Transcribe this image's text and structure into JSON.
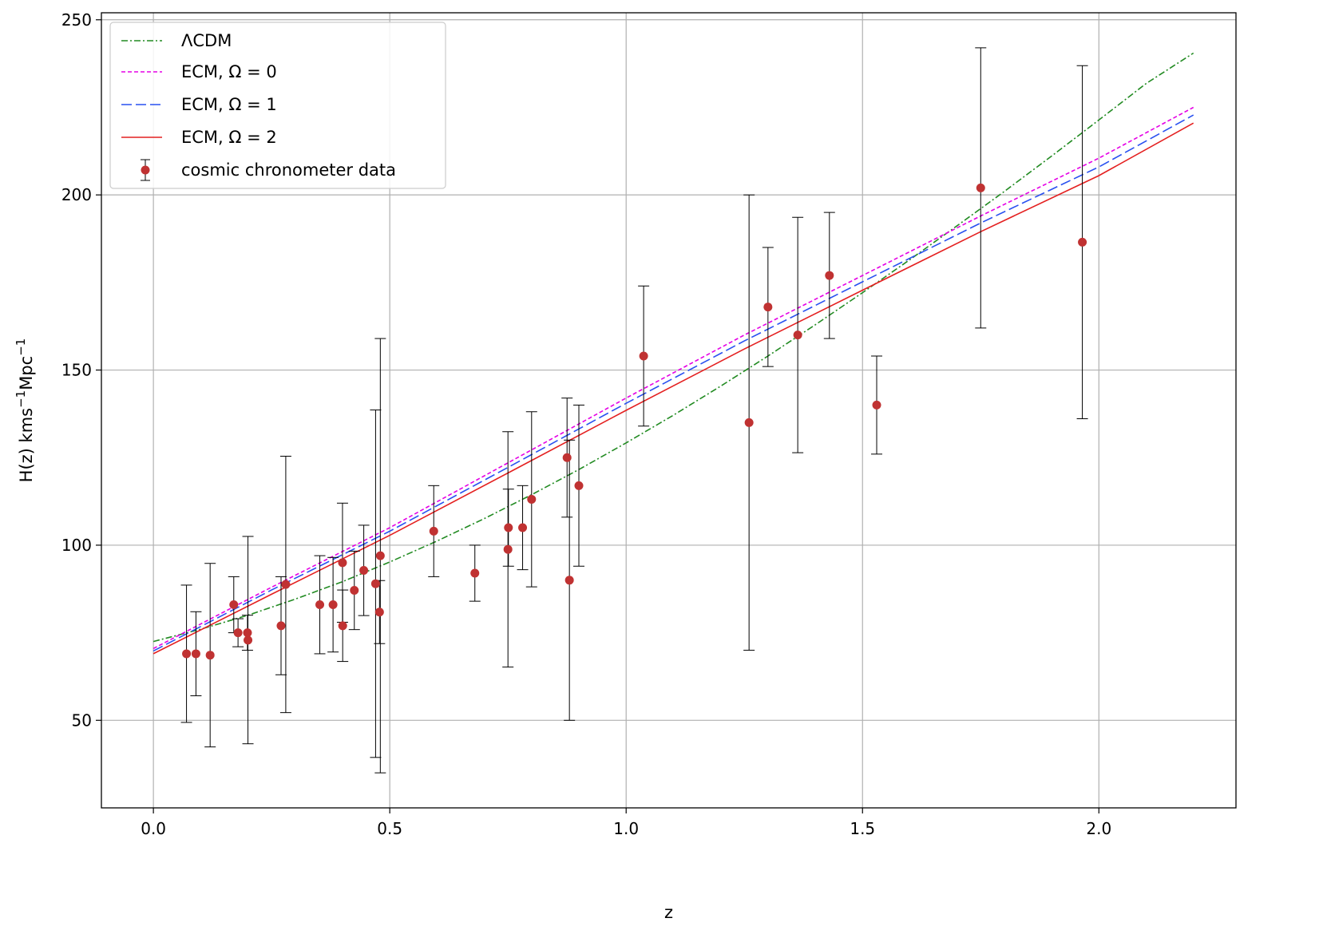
{
  "chart_data": {
    "type": "line",
    "title": "",
    "xlabel": "z",
    "ylabel": "H(z) kms⁻¹Mpc⁻¹",
    "xlim": [
      -0.11,
      2.29
    ],
    "ylim": [
      25,
      252
    ],
    "xticks": [
      0.0,
      0.5,
      1.0,
      1.5,
      2.0
    ],
    "xtick_labels": [
      "0.0",
      "0.5",
      "1.0",
      "1.5",
      "2.0"
    ],
    "yticks": [
      50,
      100,
      150,
      200,
      250
    ],
    "ytick_labels": [
      "50",
      "100",
      "150",
      "200",
      "250"
    ],
    "grid": true,
    "legend_position": "top-left",
    "series": [
      {
        "name": "ΛCDM",
        "style": "dashdot",
        "color": "#228b22",
        "x": [
          0.0,
          0.1,
          0.2,
          0.3,
          0.4,
          0.5,
          0.6,
          0.7,
          0.8,
          0.9,
          1.0,
          1.1,
          1.2,
          1.3,
          1.4,
          1.5,
          1.6,
          1.7,
          1.8,
          1.9,
          2.0,
          2.1,
          2.2
        ],
        "y": [
          72.5,
          76.0,
          80.0,
          84.6,
          89.6,
          95.2,
          101.2,
          107.6,
          114.4,
          121.6,
          129.2,
          137.1,
          145.4,
          154.0,
          162.9,
          172.1,
          181.5,
          191.2,
          201.0,
          211.1,
          221.4,
          231.8,
          240.5
        ]
      },
      {
        "name": "ECM, Ω = 0",
        "style": "dashed",
        "color": "#e500e5",
        "x": [
          0.0,
          0.25,
          0.5,
          0.75,
          1.0,
          1.25,
          1.5,
          1.75,
          2.0,
          2.2
        ],
        "y": [
          70.5,
          88.0,
          105.0,
          123.5,
          142.0,
          160.0,
          177.0,
          194.0,
          210.5,
          225.0
        ]
      },
      {
        "name": "ECM, Ω = 1",
        "style": "longdash",
        "color": "#2850f0",
        "x": [
          0.0,
          0.25,
          0.5,
          0.75,
          1.0,
          1.25,
          1.5,
          1.75,
          2.0,
          2.2
        ],
        "y": [
          69.8,
          87.2,
          104.0,
          122.2,
          140.5,
          158.3,
          175.2,
          192.0,
          208.0,
          222.8
        ]
      },
      {
        "name": "ECM, Ω = 2",
        "style": "solid",
        "color": "#e42020",
        "x": [
          0.0,
          0.25,
          0.5,
          0.75,
          1.0,
          1.25,
          1.5,
          1.75,
          2.0,
          2.2
        ],
        "y": [
          69.0,
          86.0,
          102.8,
          120.6,
          138.5,
          156.0,
          172.8,
          189.5,
          205.5,
          220.5
        ]
      }
    ],
    "scatter": {
      "name": "cosmic chronometer data",
      "color": "#c03232",
      "points": [
        {
          "x": 0.07,
          "y": 69.0,
          "err": 19.6
        },
        {
          "x": 0.09,
          "y": 69.0,
          "err": 12.0
        },
        {
          "x": 0.12,
          "y": 68.6,
          "err": 26.2
        },
        {
          "x": 0.17,
          "y": 83.0,
          "err": 8.0
        },
        {
          "x": 0.179,
          "y": 75.0,
          "err": 4.0
        },
        {
          "x": 0.199,
          "y": 75.0,
          "err": 5.0
        },
        {
          "x": 0.2,
          "y": 72.9,
          "err": 29.6
        },
        {
          "x": 0.27,
          "y": 77.0,
          "err": 14.0
        },
        {
          "x": 0.28,
          "y": 88.8,
          "err": 36.6
        },
        {
          "x": 0.352,
          "y": 83.0,
          "err": 14.0
        },
        {
          "x": 0.38,
          "y": 83.0,
          "err": 13.5
        },
        {
          "x": 0.4,
          "y": 95.0,
          "err": 17.0
        },
        {
          "x": 0.4004,
          "y": 77.0,
          "err": 10.2
        },
        {
          "x": 0.425,
          "y": 87.1,
          "err": 11.2
        },
        {
          "x": 0.445,
          "y": 92.8,
          "err": 12.9
        },
        {
          "x": 0.47,
          "y": 89.0,
          "err": 49.6
        },
        {
          "x": 0.4783,
          "y": 80.9,
          "err": 9.0
        },
        {
          "x": 0.48,
          "y": 97.0,
          "err": 62.0
        },
        {
          "x": 0.593,
          "y": 104.0,
          "err": 13.0
        },
        {
          "x": 0.68,
          "y": 92.0,
          "err": 8.0
        },
        {
          "x": 0.75,
          "y": 98.8,
          "err": 33.6
        },
        {
          "x": 0.751,
          "y": 105.0,
          "err": 11.0
        },
        {
          "x": 0.781,
          "y": 105.0,
          "err": 12.0
        },
        {
          "x": 0.8,
          "y": 113.1,
          "err": 25.0
        },
        {
          "x": 0.875,
          "y": 125.0,
          "err": 17.0
        },
        {
          "x": 0.88,
          "y": 90.0,
          "err": 40.0
        },
        {
          "x": 0.9,
          "y": 117.0,
          "err": 23.0
        },
        {
          "x": 1.037,
          "y": 154.0,
          "err": 20.0
        },
        {
          "x": 1.26,
          "y": 135.0,
          "err": 65.0
        },
        {
          "x": 1.3,
          "y": 168.0,
          "err": 17.0
        },
        {
          "x": 1.363,
          "y": 160.0,
          "err": 33.6
        },
        {
          "x": 1.43,
          "y": 177.0,
          "err": 18.0
        },
        {
          "x": 1.53,
          "y": 140.0,
          "err": 14.0
        },
        {
          "x": 1.75,
          "y": 202.0,
          "err": 40.0
        },
        {
          "x": 1.965,
          "y": 186.5,
          "err": 50.4
        }
      ]
    }
  }
}
